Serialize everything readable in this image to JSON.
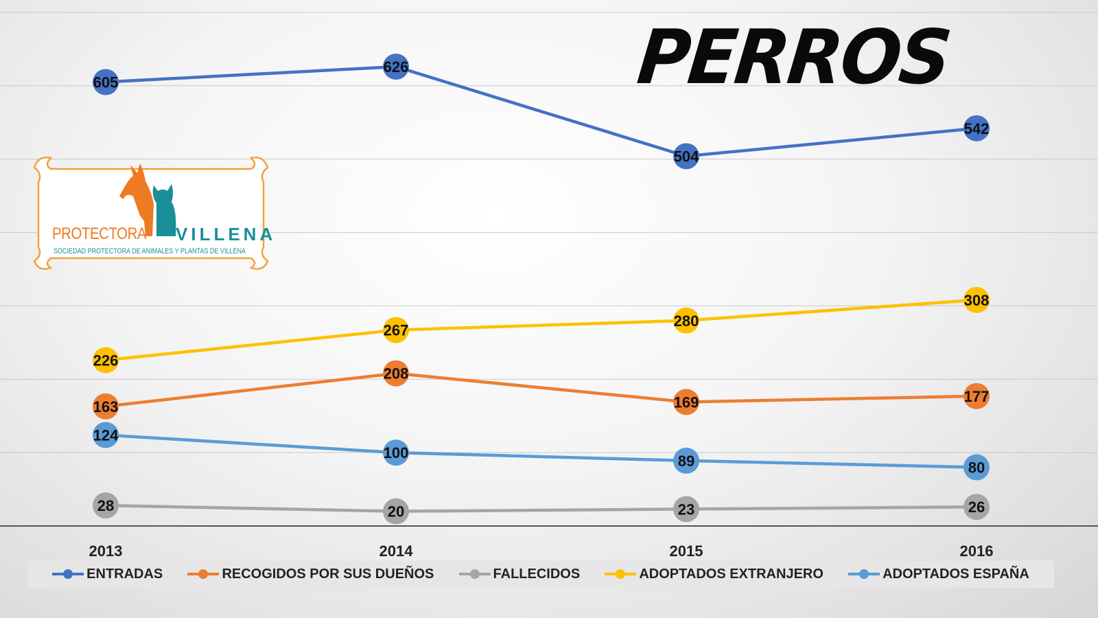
{
  "chart_data": {
    "type": "line",
    "title": "PERROS",
    "categories": [
      "2013",
      "2014",
      "2015",
      "2016"
    ],
    "ylim": [
      0,
      700
    ],
    "grid": true,
    "legend_position": "bottom",
    "series": [
      {
        "name": "ENTRADAS",
        "color": "#4472c4",
        "values": [
          605,
          626,
          504,
          542
        ]
      },
      {
        "name": "RECOGIDOS POR SUS DUEÑOS",
        "color": "#ed7d31",
        "values": [
          163,
          208,
          169,
          177
        ]
      },
      {
        "name": "FALLECIDOS",
        "color": "#a5a5a5",
        "values": [
          28,
          20,
          23,
          26
        ]
      },
      {
        "name": "ADOPTADOS EXTRANJERO",
        "color": "#ffc000",
        "values": [
          226,
          267,
          280,
          308
        ]
      },
      {
        "name": "ADOPTADOS ESPAÑA",
        "color": "#5b9bd5",
        "values": [
          124,
          100,
          89,
          80
        ]
      }
    ]
  },
  "logo": {
    "name_left": "PROTECTORA",
    "name_right": "VILLENA",
    "subtitle": "SOCIEDAD PROTECTORA DE ANIMALES Y PLANTAS DE VILLENA",
    "orange": "#ee7a22",
    "teal": "#1a8f99"
  }
}
